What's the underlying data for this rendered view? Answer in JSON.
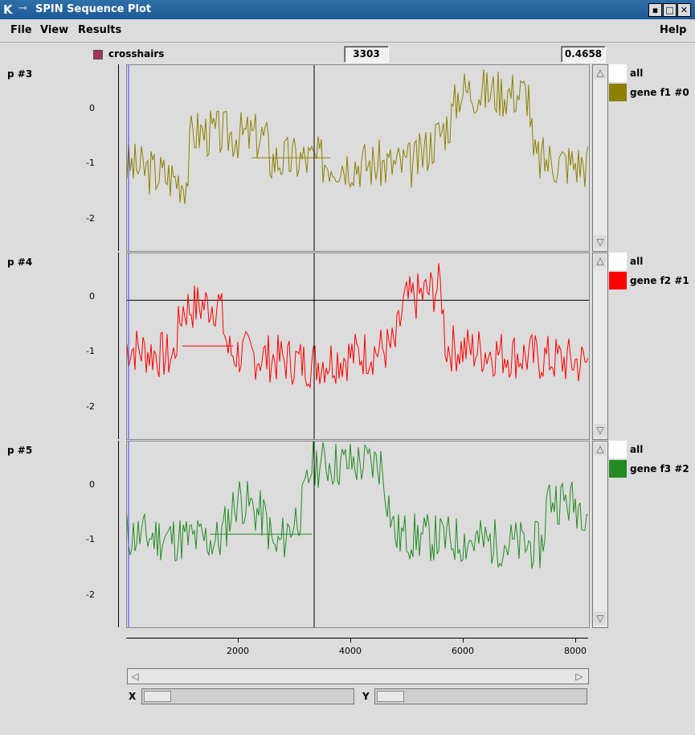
{
  "window": {
    "title": "SPIN Sequence Plot",
    "logo": "K",
    "pin": "⊸"
  },
  "window_buttons": {
    "minimize": "▪",
    "maximize": "□",
    "close": "✕"
  },
  "menu": {
    "file": "File",
    "view": "View",
    "results": "Results",
    "help": "Help"
  },
  "toolbar": {
    "crosshairs_label": "crosshairs",
    "crosshairs_checked": true,
    "x_value": "3303",
    "y_value": "0.4658"
  },
  "plots": [
    {
      "label": "p #3",
      "legend": [
        {
          "text": "all",
          "color": "#ffffff"
        },
        {
          "text": "gene f1 #0",
          "color": "#8b8000"
        }
      ],
      "color": "#8b8000",
      "yticks": [
        "0",
        "-1",
        "-2"
      ],
      "seed": 3
    },
    {
      "label": "p #4",
      "legend": [
        {
          "text": "all",
          "color": "#ffffff"
        },
        {
          "text": "gene f2 #1",
          "color": "#ff0000"
        }
      ],
      "color": "#ff0000",
      "yticks": [
        "0",
        "-1",
        "-2"
      ],
      "seed": 7
    },
    {
      "label": "p #5",
      "legend": [
        {
          "text": "all",
          "color": "#ffffff"
        },
        {
          "text": "gene f3 #2",
          "color": "#228b22"
        }
      ],
      "color": "#228b22",
      "yticks": [
        "0",
        "-1",
        "-2"
      ],
      "seed": 11
    }
  ],
  "xaxis": {
    "ticks": [
      "2000",
      "4000",
      "6000",
      "8000"
    ]
  },
  "bottom": {
    "x_label": "X",
    "y_label": "Y"
  }
}
